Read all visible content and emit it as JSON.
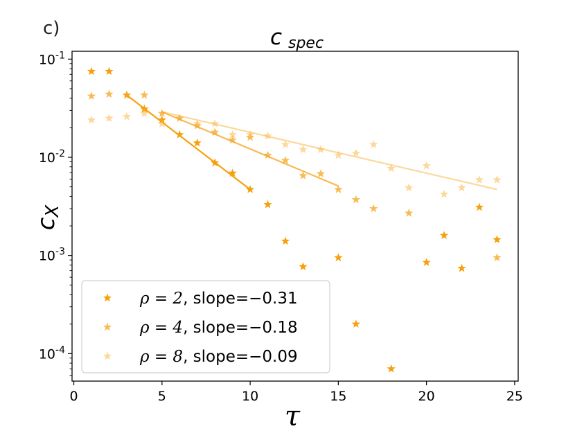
{
  "panel_label": "c)",
  "chart_data": {
    "type": "scatter",
    "title_main": "c",
    "title_sub": "spec",
    "xlabel": "τ",
    "ylabel_main": "c",
    "ylabel_sub": "X",
    "xlim": [
      -0.1,
      25.2
    ],
    "ylim_log10": [
      -4.28,
      -0.92
    ],
    "xticks": [
      0,
      5,
      10,
      15,
      20,
      25
    ],
    "xtick_labels": [
      "0",
      "5",
      "10",
      "15",
      "20",
      "25"
    ],
    "yticks_exp": [
      -4,
      -3,
      -2,
      -1
    ],
    "ytick_base": "10",
    "ytick_exp_labels": [
      "-4",
      "-3",
      "-2",
      "-1"
    ],
    "legend_position": "lower-left",
    "series": [
      {
        "name": "ρ = 2, slope=−0.31",
        "rho_label": "ρ = 2",
        "slope_label": ", slope=−0.31",
        "color": "#f5a10c",
        "opacity": 1.0,
        "x": [
          1,
          2,
          3,
          4,
          5,
          6,
          7,
          8,
          9,
          10,
          11,
          12,
          13,
          15,
          16,
          18,
          20,
          21,
          22,
          23,
          24
        ],
        "y": [
          0.075,
          0.075,
          0.043,
          0.031,
          0.024,
          0.017,
          0.014,
          0.0088,
          0.0069,
          0.0047,
          0.0033,
          0.0014,
          0.00077,
          0.00095,
          0.0002,
          7e-05,
          0.00085,
          0.0016,
          0.00074,
          0.0031,
          0.00145
        ],
        "fit": {
          "x": [
            3,
            10
          ],
          "y": [
            0.043,
            0.0047
          ]
        }
      },
      {
        "name": "ρ = 4, slope=−0.18",
        "rho_label": "ρ = 4",
        "slope_label": ", slope=−0.18",
        "color": "#f5a41e",
        "opacity": 0.75,
        "x": [
          1,
          2,
          3,
          4,
          5,
          6,
          7,
          8,
          9,
          10,
          11,
          12,
          13,
          14,
          15,
          16,
          17,
          19,
          24
        ],
        "y": [
          0.042,
          0.044,
          0.043,
          0.043,
          0.028,
          0.025,
          0.021,
          0.018,
          0.015,
          0.016,
          0.0105,
          0.0093,
          0.0065,
          0.0068,
          0.0047,
          0.0037,
          0.003,
          0.0027,
          0.00095
        ],
        "fit": {
          "x": [
            5,
            15
          ],
          "y": [
            0.029,
            0.0051
          ]
        }
      },
      {
        "name": "ρ = 8, slope=−0.09",
        "rho_label": "ρ = 8",
        "slope_label": ", slope=−0.09",
        "color": "#f9b84a",
        "opacity": 0.55,
        "x": [
          1,
          2,
          3,
          4,
          5,
          7,
          8,
          9,
          10,
          11,
          12,
          13,
          14,
          15,
          16,
          17,
          18,
          19,
          20,
          21,
          22,
          23,
          24
        ],
        "y": [
          0.024,
          0.025,
          0.026,
          0.028,
          0.022,
          0.022,
          0.022,
          0.017,
          0.017,
          0.0165,
          0.0135,
          0.012,
          0.012,
          0.0105,
          0.011,
          0.0135,
          0.0077,
          0.0049,
          0.0082,
          0.0042,
          0.0049,
          0.0059,
          0.0059
        ],
        "fit": {
          "x": [
            5,
            24
          ],
          "y": [
            0.029,
            0.0047
          ]
        }
      }
    ]
  }
}
